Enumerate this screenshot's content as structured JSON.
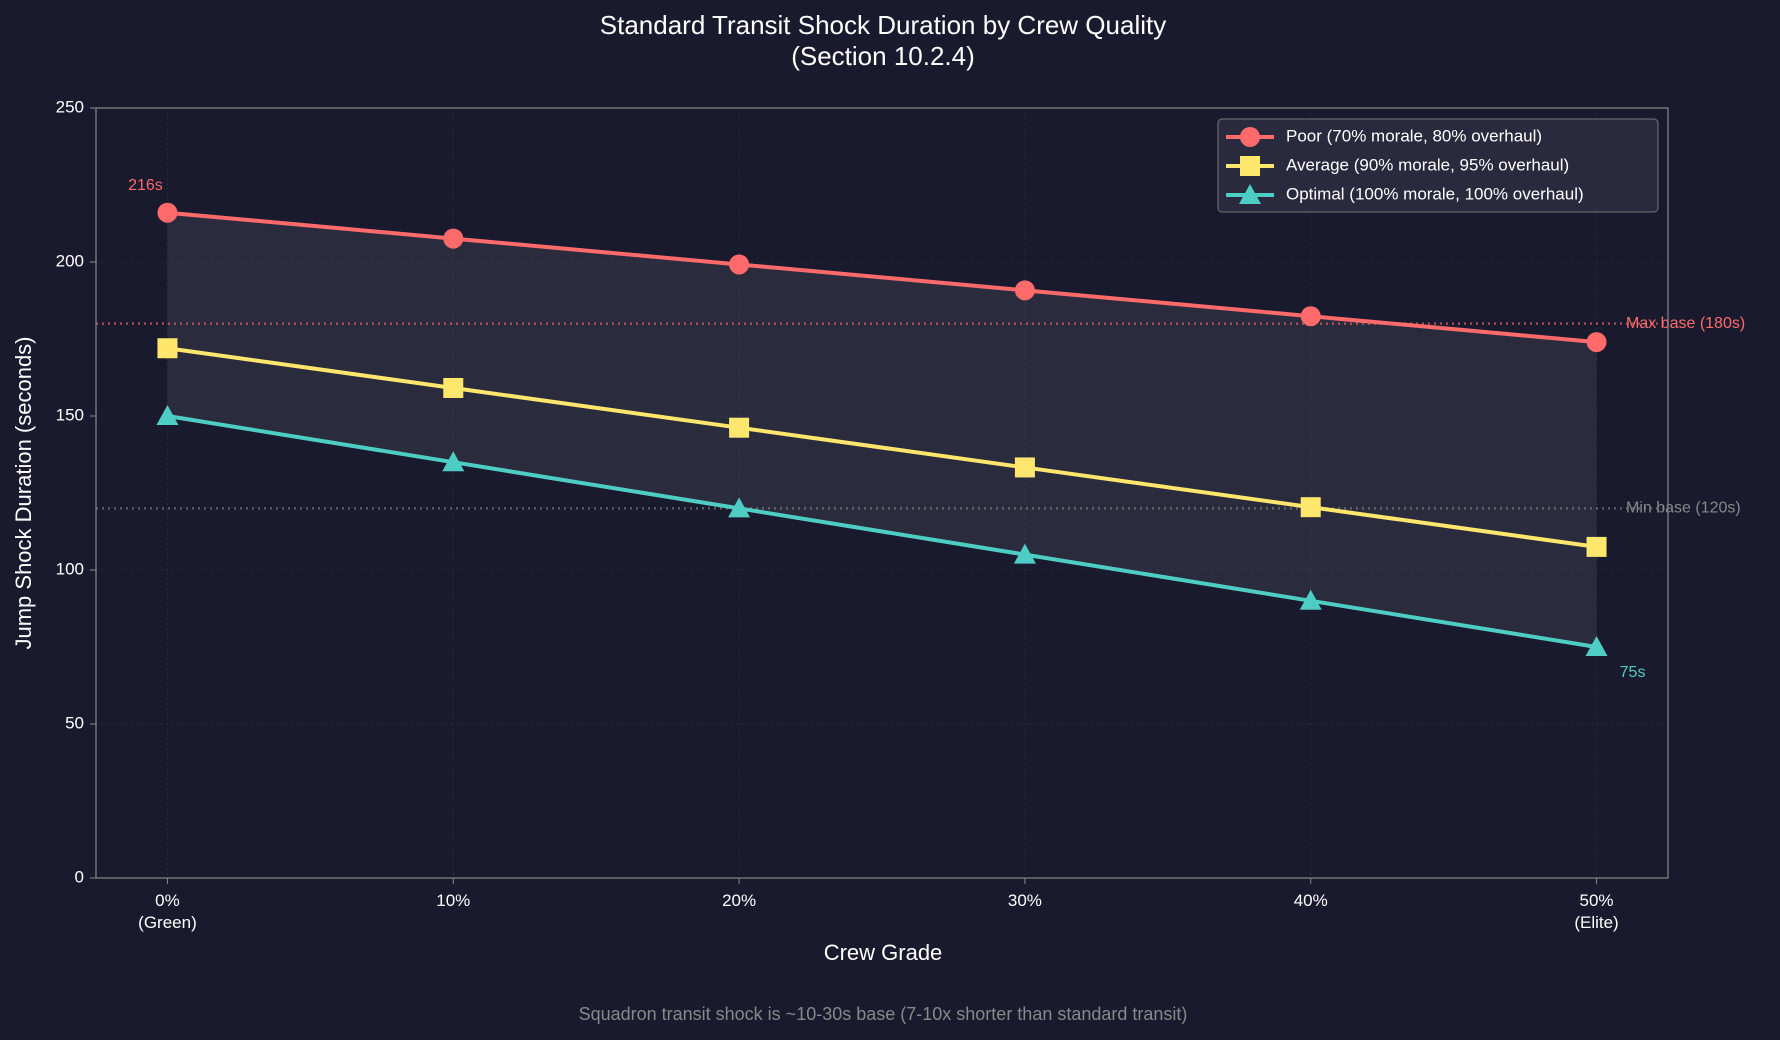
{
  "chart_data": {
    "type": "line",
    "title": "Standard Transit Shock Duration by Crew Quality",
    "subtitle": "(Section 10.2.4)",
    "x_label": "Crew Grade",
    "y_label": "Jump Shock Duration (seconds)",
    "footnote": "Squadron transit shock is ~10-30s base (7-10x shorter than standard transit)",
    "categories": [
      "0%\n(Green)",
      "10%",
      "20%",
      "30%",
      "40%",
      "50%\n(Elite)"
    ],
    "series": [
      {
        "name": "Poor (70% morale, 80% overhaul)",
        "color": "#ff6b6b",
        "marker": "circle",
        "values": [
          216,
          207.6,
          199.2,
          190.8,
          182.4,
          174
        ]
      },
      {
        "name": "Average (90% morale, 95% overhaul)",
        "color": "#ffe66d",
        "marker": "square",
        "values": [
          172,
          159.1,
          146.2,
          133.3,
          120.4,
          107.5
        ]
      },
      {
        "name": "Optimal (100% morale, 100% overhaul)",
        "color": "#4ecdc4",
        "marker": "triangle",
        "values": [
          150,
          135,
          120,
          105,
          90,
          75
        ]
      }
    ],
    "ylim": [
      0,
      250
    ],
    "yticks": [
      0,
      50,
      100,
      150,
      200,
      250
    ],
    "grid": true,
    "legend": "upper right",
    "reference_lines": [
      {
        "value": 180,
        "label": "Max base (180s)",
        "color": "#ff6b6b"
      },
      {
        "value": 120,
        "label": "Min base (120s)",
        "color": "#888888"
      }
    ],
    "annotations": [
      {
        "label": "216s",
        "value": 216
      },
      {
        "label": "75s",
        "value": 75
      }
    ]
  }
}
